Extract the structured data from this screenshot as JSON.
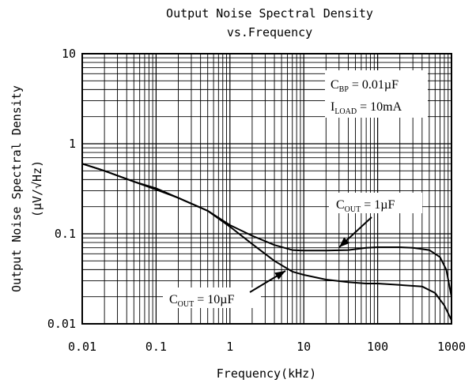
{
  "chart_data": {
    "type": "line",
    "title": [
      "Output Noise Spectral Density",
      "vs.Frequency"
    ],
    "xlabel": "Frequency(kHz)",
    "ylabel": [
      "Output Noise Spectral Density",
      "(µV/√Hz)"
    ],
    "x_scale": "log",
    "y_scale": "log",
    "xlim": [
      0.01,
      1000
    ],
    "ylim": [
      0.01,
      10
    ],
    "grid": true,
    "x_ticks": [
      {
        "value": 0.01,
        "label": "0.01"
      },
      {
        "value": 0.1,
        "label": "0.1"
      },
      {
        "value": 1,
        "label": "1"
      },
      {
        "value": 10,
        "label": "10"
      },
      {
        "value": 100,
        "label": "100"
      },
      {
        "value": 1000,
        "label": "1000"
      }
    ],
    "y_ticks": [
      {
        "value": 0.01,
        "label": "0.01"
      },
      {
        "value": 0.1,
        "label": "0.1"
      },
      {
        "value": 1,
        "label": "1"
      },
      {
        "value": 10,
        "label": "10"
      }
    ],
    "conditions": [
      {
        "main": "C",
        "sub": "BP",
        "rest": " = 0.01µF"
      },
      {
        "main": "I",
        "sub": "LOAD",
        "rest": " = 10mA"
      }
    ],
    "series": [
      {
        "name": "C_OUT = 1µF",
        "label": {
          "main": "C",
          "sub": "OUT",
          "rest": " = 1µF"
        },
        "points": [
          [
            0.01,
            0.6
          ],
          [
            0.02,
            0.5
          ],
          [
            0.05,
            0.38
          ],
          [
            0.1,
            0.31
          ],
          [
            0.2,
            0.25
          ],
          [
            0.5,
            0.18
          ],
          [
            1,
            0.125
          ],
          [
            2,
            0.095
          ],
          [
            4,
            0.075
          ],
          [
            7,
            0.066
          ],
          [
            10,
            0.065
          ],
          [
            20,
            0.065
          ],
          [
            40,
            0.066
          ],
          [
            70,
            0.07
          ],
          [
            100,
            0.071
          ],
          [
            200,
            0.071
          ],
          [
            300,
            0.07
          ],
          [
            500,
            0.066
          ],
          [
            700,
            0.055
          ],
          [
            850,
            0.04
          ],
          [
            1000,
            0.02
          ]
        ]
      },
      {
        "name": "C_OUT = 10µF",
        "label": {
          "main": "C",
          "sub": "OUT",
          "rest": " = 10µF"
        },
        "points": [
          [
            0.01,
            0.6
          ],
          [
            0.02,
            0.5
          ],
          [
            0.05,
            0.38
          ],
          [
            0.1,
            0.32
          ],
          [
            0.2,
            0.25
          ],
          [
            0.5,
            0.18
          ],
          [
            1,
            0.12
          ],
          [
            2,
            0.077
          ],
          [
            4,
            0.05
          ],
          [
            7,
            0.038
          ],
          [
            10,
            0.035
          ],
          [
            20,
            0.031
          ],
          [
            40,
            0.029
          ],
          [
            70,
            0.028
          ],
          [
            100,
            0.028
          ],
          [
            200,
            0.027
          ],
          [
            400,
            0.026
          ],
          [
            600,
            0.022
          ],
          [
            800,
            0.016
          ],
          [
            1000,
            0.011
          ]
        ]
      }
    ]
  }
}
